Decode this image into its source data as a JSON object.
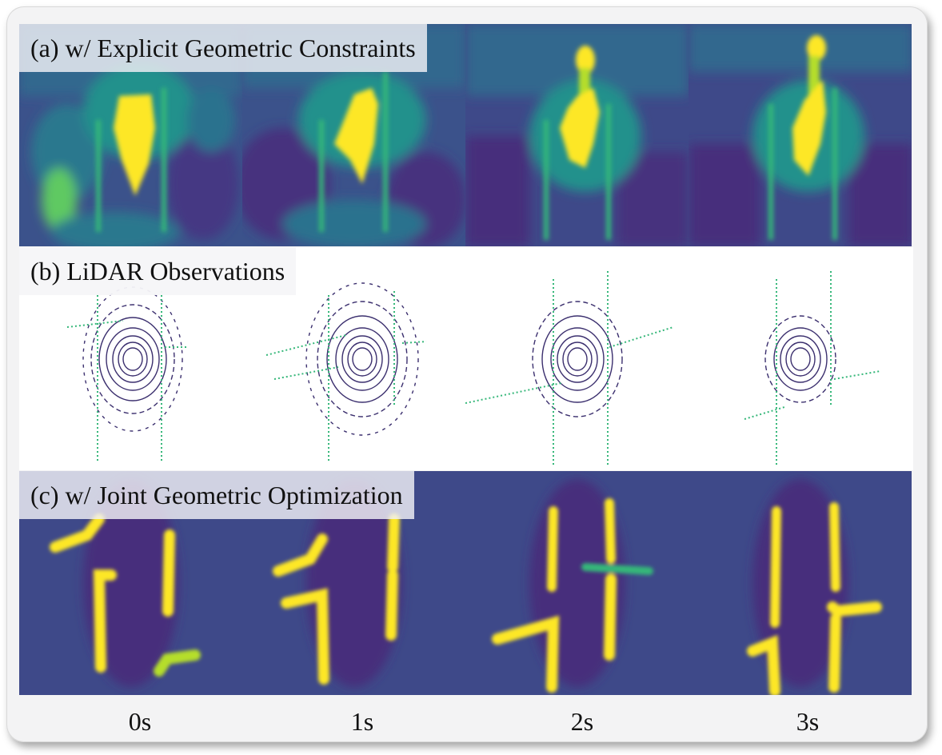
{
  "rows": {
    "a": {
      "label": "(a) w/ Explicit Geometric Constraints"
    },
    "b": {
      "label": "(b) LiDAR Observations"
    },
    "c": {
      "label": "(c) w/ Joint Geometric Optimization"
    }
  },
  "time_labels": [
    "0s",
    "1s",
    "2s",
    "3s"
  ],
  "colors": {
    "viridis_dark": "#440154",
    "viridis_blue": "#31688e",
    "viridis_teal": "#21918c",
    "viridis_green": "#35b779",
    "viridis_yellow": "#fde725",
    "lidar_ring": "#3b2f6e",
    "background": "#ffffff"
  }
}
